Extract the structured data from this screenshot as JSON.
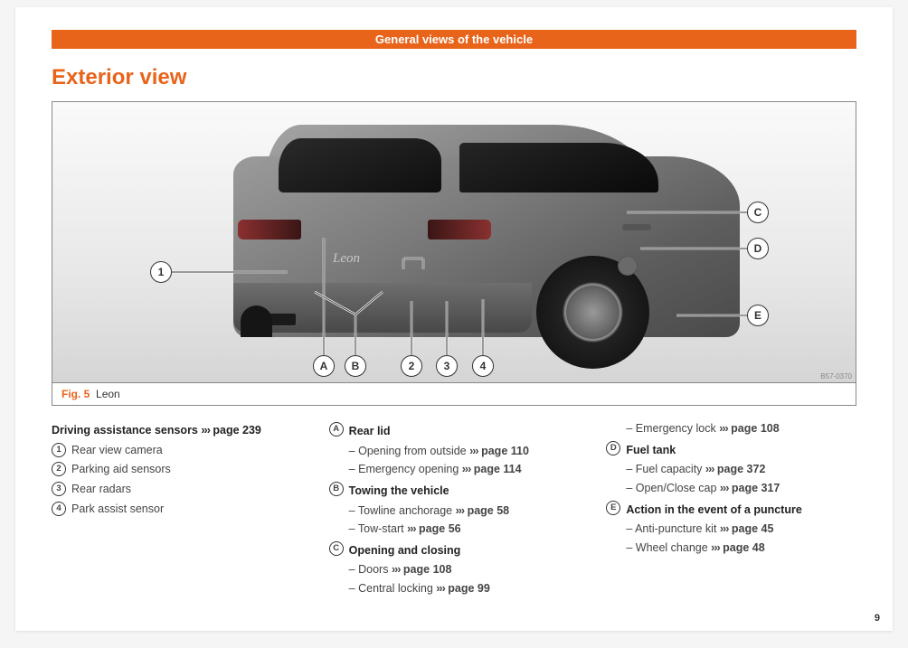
{
  "header": "General views of the vehicle",
  "section_title": "Exterior view",
  "figure": {
    "label": "Fig. 5",
    "caption": "Leon",
    "code": "B57-0370",
    "badge": "Leon"
  },
  "callouts_num": [
    "1",
    "2",
    "3",
    "4"
  ],
  "callouts_alpha": [
    "A",
    "B",
    "C",
    "D",
    "E"
  ],
  "col1": {
    "head": "Driving assistance sensors",
    "head_ref": "page 239",
    "items": [
      {
        "m": "1",
        "t": "Rear view camera"
      },
      {
        "m": "2",
        "t": "Parking aid sensors"
      },
      {
        "m": "3",
        "t": "Rear radars"
      },
      {
        "m": "4",
        "t": "Park assist sensor"
      }
    ]
  },
  "col2": {
    "groups": [
      {
        "m": "A",
        "t": "Rear lid",
        "subs": [
          {
            "t": "Opening from outside",
            "ref": "page 110"
          },
          {
            "t": "Emergency opening",
            "ref": "page 114"
          }
        ]
      },
      {
        "m": "B",
        "t": "Towing the vehicle",
        "subs": [
          {
            "t": "Towline anchorage",
            "ref": "page 58"
          },
          {
            "t": "Tow-start",
            "ref": "page 56"
          }
        ]
      },
      {
        "m": "C",
        "t": "Opening and closing",
        "subs": [
          {
            "t": "Doors",
            "ref": "page 108"
          },
          {
            "t": "Central locking",
            "ref": "page 99"
          }
        ]
      }
    ]
  },
  "col3": {
    "pre_subs": [
      {
        "t": "Emergency lock",
        "ref": "page 108"
      }
    ],
    "groups": [
      {
        "m": "D",
        "t": "Fuel tank",
        "subs": [
          {
            "t": "Fuel capacity",
            "ref": "page 372"
          },
          {
            "t": "Open/Close cap",
            "ref": "page 317"
          }
        ]
      },
      {
        "m": "E",
        "t": "Action in the event of a puncture",
        "subs": [
          {
            "t": "Anti-puncture kit",
            "ref": "page 45"
          },
          {
            "t": "Wheel change",
            "ref": "page 48"
          }
        ]
      }
    ]
  },
  "arrow": "›››",
  "page_num": "9",
  "colors": {
    "accent": "#e8641b"
  }
}
